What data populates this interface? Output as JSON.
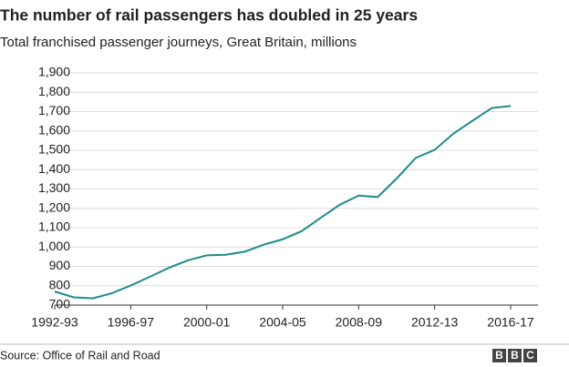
{
  "chart_data": {
    "type": "line",
    "title": "The number of rail passengers has doubled in 25 years",
    "subtitle": "Total franchised passenger journeys, Great Britain, millions",
    "categories": [
      "1992-93",
      null,
      null,
      null,
      "1996-97",
      null,
      null,
      null,
      "2000-01",
      null,
      null,
      null,
      "2004-05",
      null,
      null,
      null,
      "2008-09",
      null,
      null,
      null,
      "2012-13",
      null,
      null,
      null,
      "2016-17"
    ],
    "series": [
      {
        "name": "Passenger journeys",
        "color": "#1d8c8c",
        "values": [
          770,
          740,
          735,
          761,
          801,
          846,
          892,
          931,
          957,
          960,
          976,
          1012,
          1040,
          1082,
          1151,
          1218,
          1266,
          1258,
          1354,
          1460,
          1502,
          1587,
          1653,
          1718,
          1729
        ]
      }
    ],
    "ylim": [
      700,
      1900
    ],
    "yticks": [
      700,
      800,
      900,
      {
        "value": 1000,
        "label": "1,000"
      },
      {
        "value": 1100,
        "label": "1,100"
      },
      {
        "value": 1200,
        "label": "1,200"
      },
      {
        "value": 1300,
        "label": "1,300"
      },
      {
        "value": 1400,
        "label": "1,400"
      },
      {
        "value": 1500,
        "label": "1,500"
      },
      {
        "value": 1600,
        "label": "1,600"
      },
      {
        "value": 1700,
        "label": "1,700"
      },
      {
        "value": 1800,
        "label": "1,800"
      },
      {
        "value": 1900,
        "label": "1,900"
      }
    ],
    "grid": true
  },
  "source": "Source: Office of Rail and Road",
  "logo": [
    "B",
    "B",
    "C"
  ]
}
